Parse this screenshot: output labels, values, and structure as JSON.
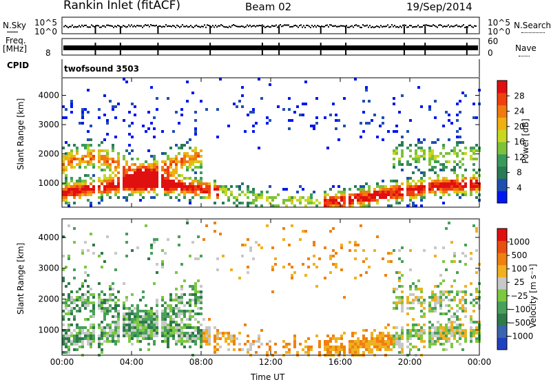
{
  "header": {
    "station": "Rankin Inlet (fitACF)",
    "beam": "Beam 02",
    "date": "19/Sep/2014"
  },
  "strip_labels": {
    "nsky": "N.Sky",
    "nsky_ticks": [
      "10^5",
      "10^0"
    ],
    "nsearch": "N.Search",
    "nsearch_ticks": [
      "10^5",
      "10^0"
    ],
    "freq": "Freq.",
    "freq_unit": "[MHz]",
    "freq_ticks": [
      "8"
    ],
    "nave": "Nave",
    "nave_ticks": [
      "60",
      "0"
    ],
    "cpid": "CPID",
    "cpid_value": "twofsound 3503"
  },
  "chart_data": [
    {
      "type": "heatmap",
      "name": "power",
      "ylabel": "Slant Range [km]",
      "xlabel": "Time UT",
      "y_ticks": [
        "1000",
        "2000",
        "3000",
        "4000"
      ],
      "ylim": [
        180,
        4600
      ],
      "xlim": [
        0,
        24
      ],
      "x_ticks": [
        "00:00",
        "04:00",
        "08:00",
        "12:00",
        "16:00",
        "20:00",
        "00:00"
      ],
      "colorbar": {
        "label": "Power [dB]",
        "ticks": [
          "4",
          "8",
          "12",
          "16",
          "20",
          "24",
          "28"
        ],
        "range": [
          0,
          30
        ],
        "colors": [
          "#0018f0",
          "#1f4fb0",
          "#2a7a55",
          "#3a9a5a",
          "#7cc23a",
          "#c8d820",
          "#f0b010",
          "#f07a10",
          "#f04010",
          "#e01010"
        ]
      }
    },
    {
      "type": "heatmap",
      "name": "velocity",
      "ylabel": "Slant Range [km]",
      "xlabel": "Time UT",
      "y_ticks": [
        "1000",
        "2000",
        "3000",
        "4000"
      ],
      "ylim": [
        180,
        4600
      ],
      "xlim": [
        0,
        24
      ],
      "x_ticks": [
        "00:00",
        "04:00",
        "08:00",
        "12:00",
        "16:00",
        "20:00",
        "00:00"
      ],
      "colorbar": {
        "label": "Velocity [m s⁻¹]",
        "ticks": [
          "1000",
          "500",
          "100",
          "25",
          "−25",
          "−100",
          "−500",
          "−1000"
        ],
        "colors": [
          "#2040c0",
          "#3a64b0",
          "#2e7a4a",
          "#48a05a",
          "#7cc840",
          "#c8c8c8",
          "#f0b020",
          "#f08010",
          "#e85010",
          "#e01010"
        ]
      }
    }
  ],
  "colors": {
    "frame": "#000000",
    "gap": "#ffffff"
  }
}
